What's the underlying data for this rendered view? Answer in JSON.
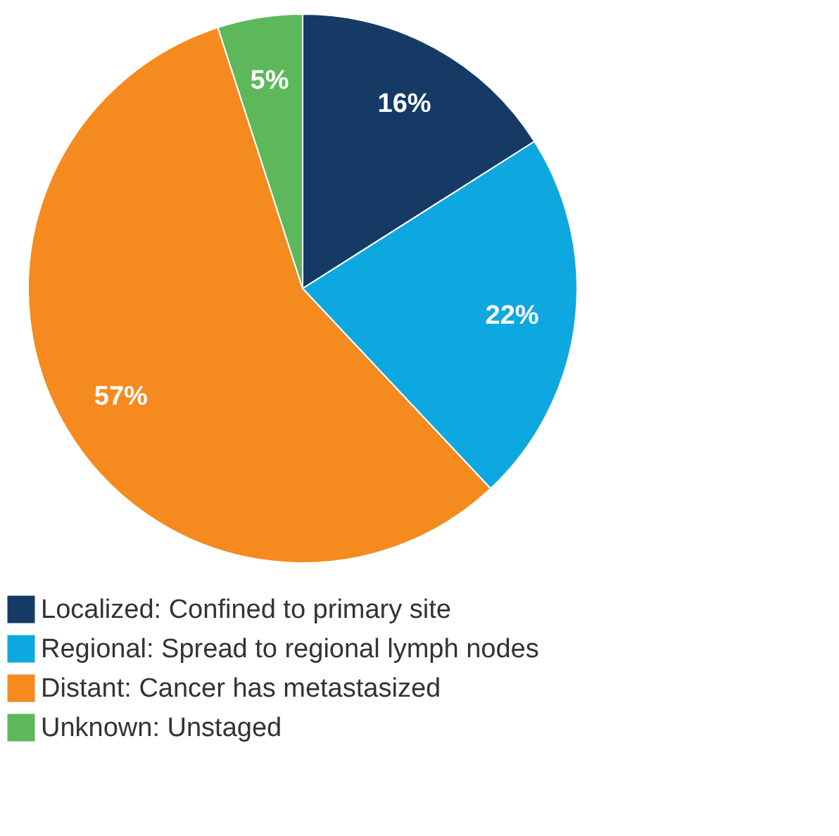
{
  "chart_data": {
    "type": "pie",
    "categories": [
      "Localized: Confined to primary site",
      "Regional: Spread to regional lymph nodes",
      "Distant: Cancer has metastasized",
      "Unknown: Unstaged"
    ],
    "values": [
      16,
      22,
      57,
      5
    ],
    "colors": [
      "#163a66",
      "#0ea8e0",
      "#f58a1f",
      "#5db85b"
    ],
    "value_labels": [
      "16%",
      "22%",
      "57%",
      "5%"
    ],
    "legend": "bottom"
  }
}
